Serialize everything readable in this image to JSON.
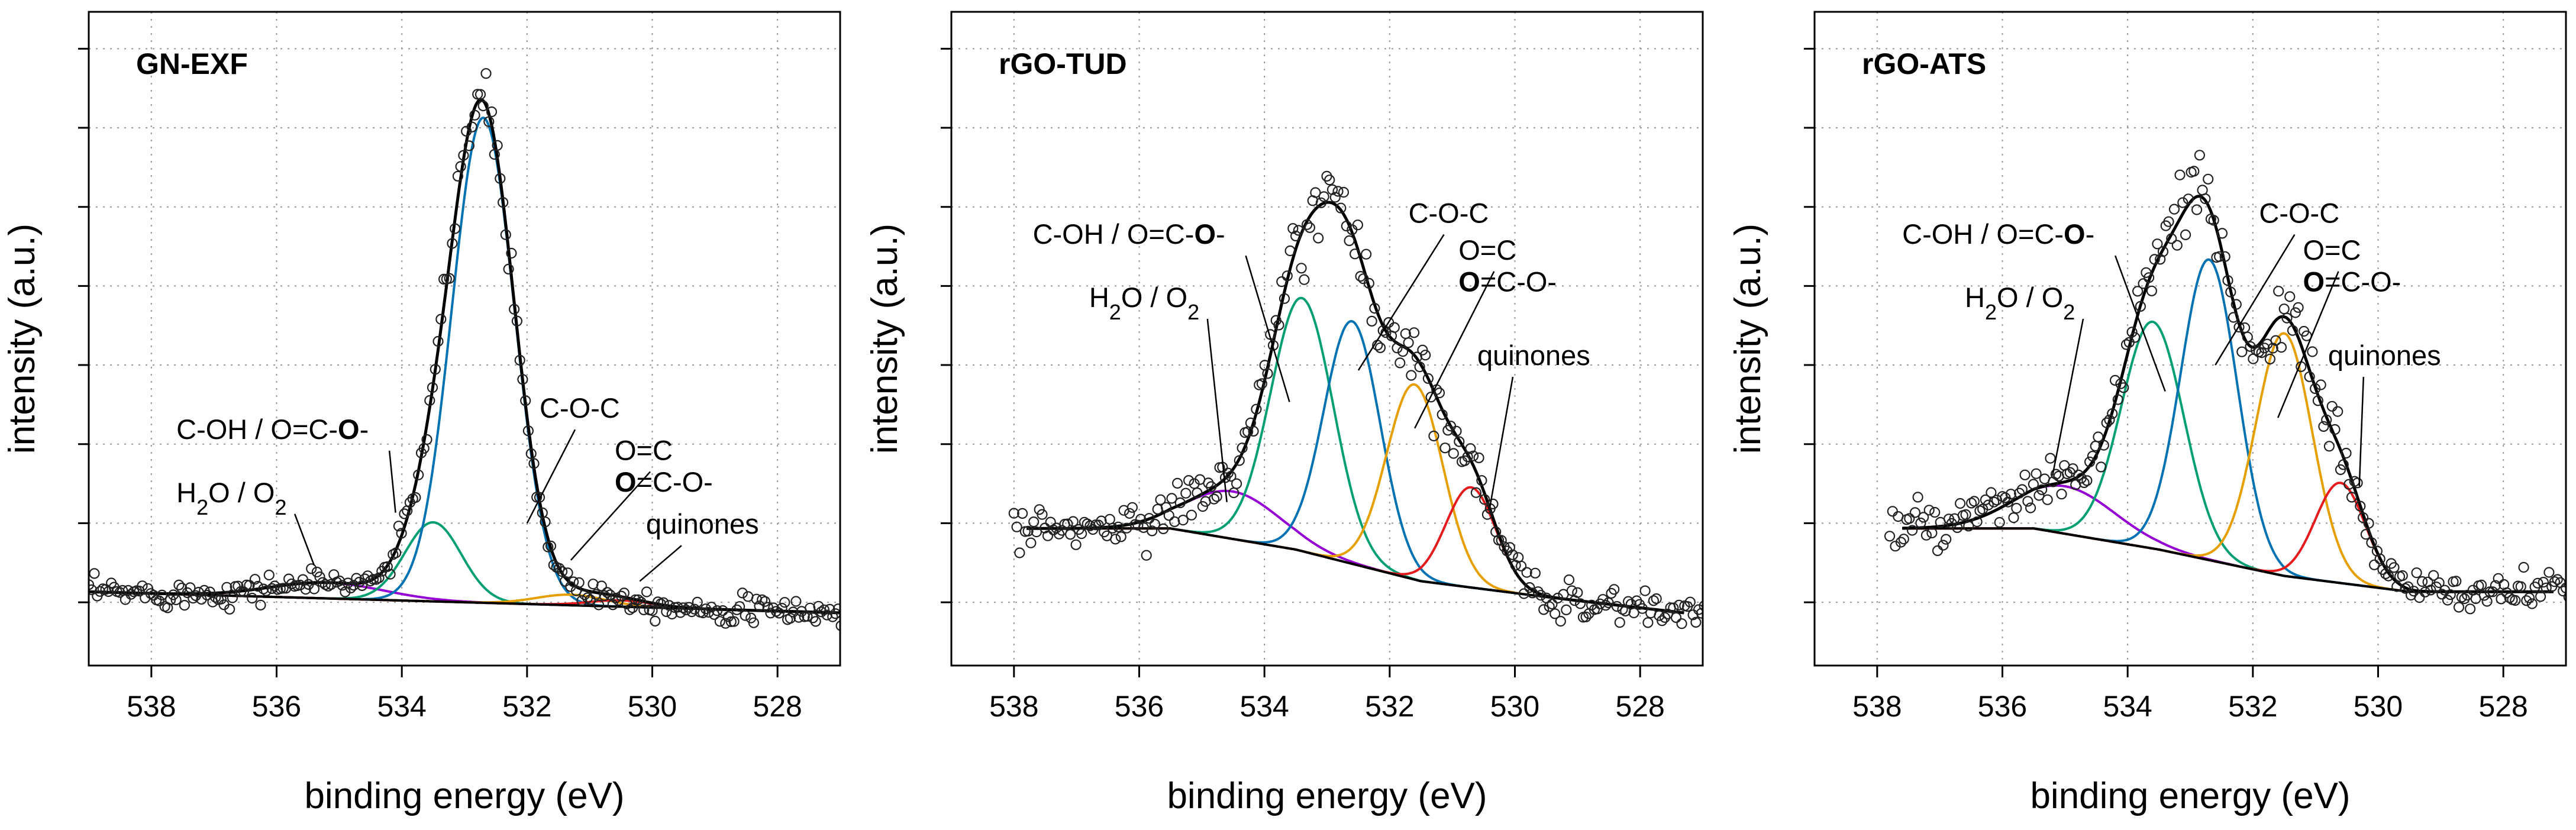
{
  "figure": {
    "description_free": true
  },
  "chart_data": [
    {
      "type": "line",
      "title": "GN-EXF",
      "xlabel": "binding energy (eV)",
      "ylabel": "intensity (a.u.)",
      "xlim": [
        539,
        527
      ],
      "xticks": [
        538,
        536,
        534,
        532,
        530,
        528
      ],
      "ylim": [
        -0.12,
        1.12
      ],
      "background": [
        [
          539,
          0.02
        ],
        [
          527,
          -0.02
        ]
      ],
      "components": [
        {
          "name": "H2O / O2",
          "color": "#9400d3",
          "center": 535.2,
          "amplitude": 0.03,
          "width": 0.9
        },
        {
          "name": "C-OH / O=C-O-",
          "color": "#009e73",
          "center": 533.5,
          "amplitude": 0.15,
          "width": 0.45
        },
        {
          "name": "C-O-C",
          "color": "#0072b2",
          "center": 532.7,
          "amplitude": 0.92,
          "width": 0.5
        },
        {
          "name": "O=C / O=C-O-",
          "color": "#e69f00",
          "center": 531.3,
          "amplitude": 0.02,
          "width": 0.55
        },
        {
          "name": "quinones",
          "color": "#e41a1c",
          "center": 530.5,
          "amplitude": 0.012,
          "width": 0.5
        }
      ],
      "noise": 0.02,
      "annotations": [
        {
          "text": "C-OH / O=C-",
          "bold": "O-",
          "label_x": 537.6,
          "label_y": 0.31,
          "target_x": 534.1,
          "target_y": 0.17
        },
        {
          "text": "H2O / O2",
          "label_x": 537.6,
          "label_y": 0.19,
          "target_x": 535.4,
          "target_y": 0.07
        },
        {
          "text": "C-O-C",
          "label_x": 531.8,
          "label_y": 0.35,
          "target_x": 532.0,
          "target_y": 0.15
        },
        {
          "text": "O=C",
          "label_x": 530.6,
          "label_y": 0.27,
          "target_x": 531.3,
          "target_y": 0.08
        },
        {
          "text": "O=C-O-",
          "bold": "O",
          "label_x": 530.6,
          "label_y": 0.21,
          "target_x": null,
          "target_y": null
        },
        {
          "text": "quinones",
          "label_x": 530.1,
          "label_y": 0.13,
          "target_x": 530.2,
          "target_y": 0.04
        }
      ]
    },
    {
      "type": "line",
      "title": "rGO-TUD",
      "xlabel": "binding energy (eV)",
      "ylabel": "intensity (a.u.)",
      "xlim": [
        539,
        527
      ],
      "xticks": [
        538,
        536,
        534,
        532,
        530,
        528
      ],
      "ylim": [
        -0.12,
        1.12
      ],
      "background": [
        [
          537.8,
          0.14
        ],
        [
          535.5,
          0.14
        ],
        [
          533.5,
          0.1
        ],
        [
          531.5,
          0.04
        ],
        [
          529.5,
          0.01
        ],
        [
          527.3,
          -0.02
        ]
      ],
      "components": [
        {
          "name": "H2O / O2",
          "color": "#9400d3",
          "center": 534.5,
          "amplitude": 0.09,
          "width": 0.75
        },
        {
          "name": "C-OH / O=C-O-",
          "color": "#009e73",
          "center": 533.4,
          "amplitude": 0.48,
          "width": 0.5
        },
        {
          "name": "C-O-C",
          "color": "#0072b2",
          "center": 532.6,
          "amplitude": 0.46,
          "width": 0.45
        },
        {
          "name": "O=C / O=C-O-",
          "color": "#e69f00",
          "center": 531.6,
          "amplitude": 0.37,
          "width": 0.45
        },
        {
          "name": "quinones",
          "color": "#e41a1c",
          "center": 530.7,
          "amplitude": 0.19,
          "width": 0.4
        }
      ],
      "noise": 0.03,
      "annotations": [
        {
          "text": "C-OH / O=C-",
          "bold": "O-",
          "label_x": 537.7,
          "label_y": 0.68,
          "target_x": 533.6,
          "target_y": 0.38
        },
        {
          "text": "H2O / O2",
          "label_x": 536.8,
          "label_y": 0.56,
          "target_x": 534.6,
          "target_y": 0.19
        },
        {
          "text": "C-O-C",
          "label_x": 531.7,
          "label_y": 0.72,
          "target_x": 532.5,
          "target_y": 0.44
        },
        {
          "text": "O=C",
          "label_x": 530.9,
          "label_y": 0.65,
          "target_x": 531.6,
          "target_y": 0.33
        },
        {
          "text": "O=C-O-",
          "bold": "O",
          "label_x": 530.9,
          "label_y": 0.59,
          "target_x": null,
          "target_y": null
        },
        {
          "text": "quinones",
          "label_x": 530.6,
          "label_y": 0.45,
          "target_x": 530.4,
          "target_y": 0.18
        }
      ]
    },
    {
      "type": "line",
      "title": "rGO-ATS",
      "xlabel": "binding energy (eV)",
      "ylabel": "intensity (a.u.)",
      "xlim": [
        539,
        527
      ],
      "xticks": [
        538,
        536,
        534,
        532,
        530,
        528
      ],
      "ylim": [
        -0.12,
        1.12
      ],
      "background": [
        [
          537.6,
          0.14
        ],
        [
          535.5,
          0.14
        ],
        [
          533.5,
          0.1
        ],
        [
          531.5,
          0.05
        ],
        [
          529.5,
          0.02
        ],
        [
          527.2,
          0.02
        ]
      ],
      "components": [
        {
          "name": "H2O / O2",
          "color": "#9400d3",
          "center": 535.0,
          "amplitude": 0.09,
          "width": 0.8
        },
        {
          "name": "C-OH / O=C-O-",
          "color": "#009e73",
          "center": 533.6,
          "amplitude": 0.43,
          "width": 0.5
        },
        {
          "name": "C-O-C",
          "color": "#0072b2",
          "center": 532.7,
          "amplitude": 0.57,
          "width": 0.45
        },
        {
          "name": "O=C / O=C-O-",
          "color": "#e69f00",
          "center": 531.5,
          "amplitude": 0.46,
          "width": 0.45
        },
        {
          "name": "quinones",
          "color": "#e41a1c",
          "center": 530.6,
          "amplitude": 0.19,
          "width": 0.4
        }
      ],
      "noise": 0.03,
      "annotations": [
        {
          "text": "C-OH / O=C-",
          "bold": "O-",
          "label_x": 537.6,
          "label_y": 0.68,
          "target_x": 533.4,
          "target_y": 0.4
        },
        {
          "text": "H2O / O2",
          "label_x": 536.6,
          "label_y": 0.56,
          "target_x": 535.2,
          "target_y": 0.24
        },
        {
          "text": "C-O-C",
          "label_x": 531.9,
          "label_y": 0.72,
          "target_x": 532.6,
          "target_y": 0.45
        },
        {
          "text": "O=C",
          "label_x": 531.2,
          "label_y": 0.65,
          "target_x": 531.6,
          "target_y": 0.35
        },
        {
          "text": "O=C-O-",
          "bold": "O",
          "label_x": 531.2,
          "label_y": 0.59,
          "target_x": null,
          "target_y": null
        },
        {
          "text": "quinones",
          "label_x": 530.8,
          "label_y": 0.45,
          "target_x": 530.3,
          "target_y": 0.22
        }
      ]
    }
  ],
  "legend_colors": {
    "envelope": "#000000",
    "grid": "#999999",
    "markers": "#222222"
  }
}
